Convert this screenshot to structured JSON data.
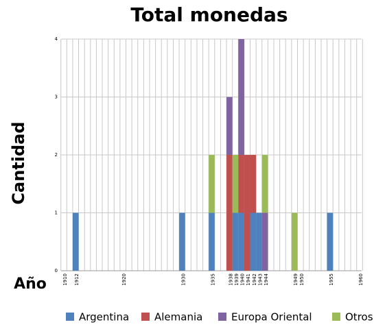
{
  "chart_data": {
    "type": "stacked_bar",
    "title": "Total monedas",
    "x_label": "Año",
    "y_label": "Cantidad",
    "x": [
      1912,
      1930,
      1935,
      1938,
      1939,
      1940,
      1941,
      1942,
      1943,
      1944,
      1949,
      1955
    ],
    "series": [
      {
        "name": "Argentina",
        "color": "#4f81bd",
        "values": [
          1,
          1,
          1,
          0,
          1,
          1,
          0,
          1,
          1,
          0,
          0,
          1
        ]
      },
      {
        "name": "Alemania",
        "color": "#c0504d",
        "values": [
          0,
          0,
          0,
          2,
          0,
          1,
          2,
          1,
          0,
          0,
          0,
          0
        ]
      },
      {
        "name": "Europa Oriental",
        "color": "#8064a2",
        "values": [
          0,
          0,
          0,
          1,
          0,
          2,
          0,
          0,
          0,
          1,
          0,
          0
        ]
      },
      {
        "name": "Otros",
        "color": "#9bbb59",
        "values": [
          0,
          0,
          1,
          0,
          1,
          0,
          0,
          0,
          0,
          1,
          1,
          0
        ]
      }
    ],
    "xlim": [
      1910,
      1960
    ],
    "xticks": [
      1910,
      {
        "value": 1911,
        "label": null
      },
      1912,
      {
        "value": 1913,
        "label": null
      },
      {
        "value": 1914,
        "label": null
      },
      {
        "value": 1915,
        "label": null
      },
      {
        "value": 1916,
        "label": null
      },
      {
        "value": 1917,
        "label": null
      },
      {
        "value": 1918,
        "label": null
      },
      {
        "value": 1919,
        "label": null
      },
      1920,
      {
        "value": 1921,
        "label": null
      },
      {
        "value": 1922,
        "label": null
      },
      {
        "value": 1923,
        "label": null
      },
      {
        "value": 1924,
        "label": null
      },
      {
        "value": 1925,
        "label": null
      },
      {
        "value": 1926,
        "label": null
      },
      {
        "value": 1927,
        "label": null
      },
      {
        "value": 1928,
        "label": null
      },
      {
        "value": 1929,
        "label": null
      },
      1930,
      {
        "value": 1931,
        "label": null
      },
      {
        "value": 1932,
        "label": null
      },
      {
        "value": 1933,
        "label": null
      },
      {
        "value": 1934,
        "label": null
      },
      1935,
      {
        "value": 1936,
        "label": null
      },
      {
        "value": 1937,
        "label": null
      },
      1938,
      1939,
      1940,
      1941,
      1942,
      1943,
      1944,
      {
        "value": 1945,
        "label": null
      },
      {
        "value": 1946,
        "label": null
      },
      {
        "value": 1947,
        "label": null
      },
      {
        "value": 1948,
        "label": null
      },
      1949,
      1950,
      {
        "value": 1951,
        "label": null
      },
      {
        "value": 1952,
        "label": null
      },
      {
        "value": 1953,
        "label": null
      },
      {
        "value": 1954,
        "label": null
      },
      1955,
      {
        "value": 1956,
        "label": null
      },
      {
        "value": 1957,
        "label": null
      },
      {
        "value": 1958,
        "label": null
      },
      {
        "value": 1959,
        "label": null
      },
      1960
    ],
    "ylim": [
      0,
      4
    ],
    "yticks": [
      0,
      1,
      2,
      3,
      4
    ],
    "grid": true
  }
}
